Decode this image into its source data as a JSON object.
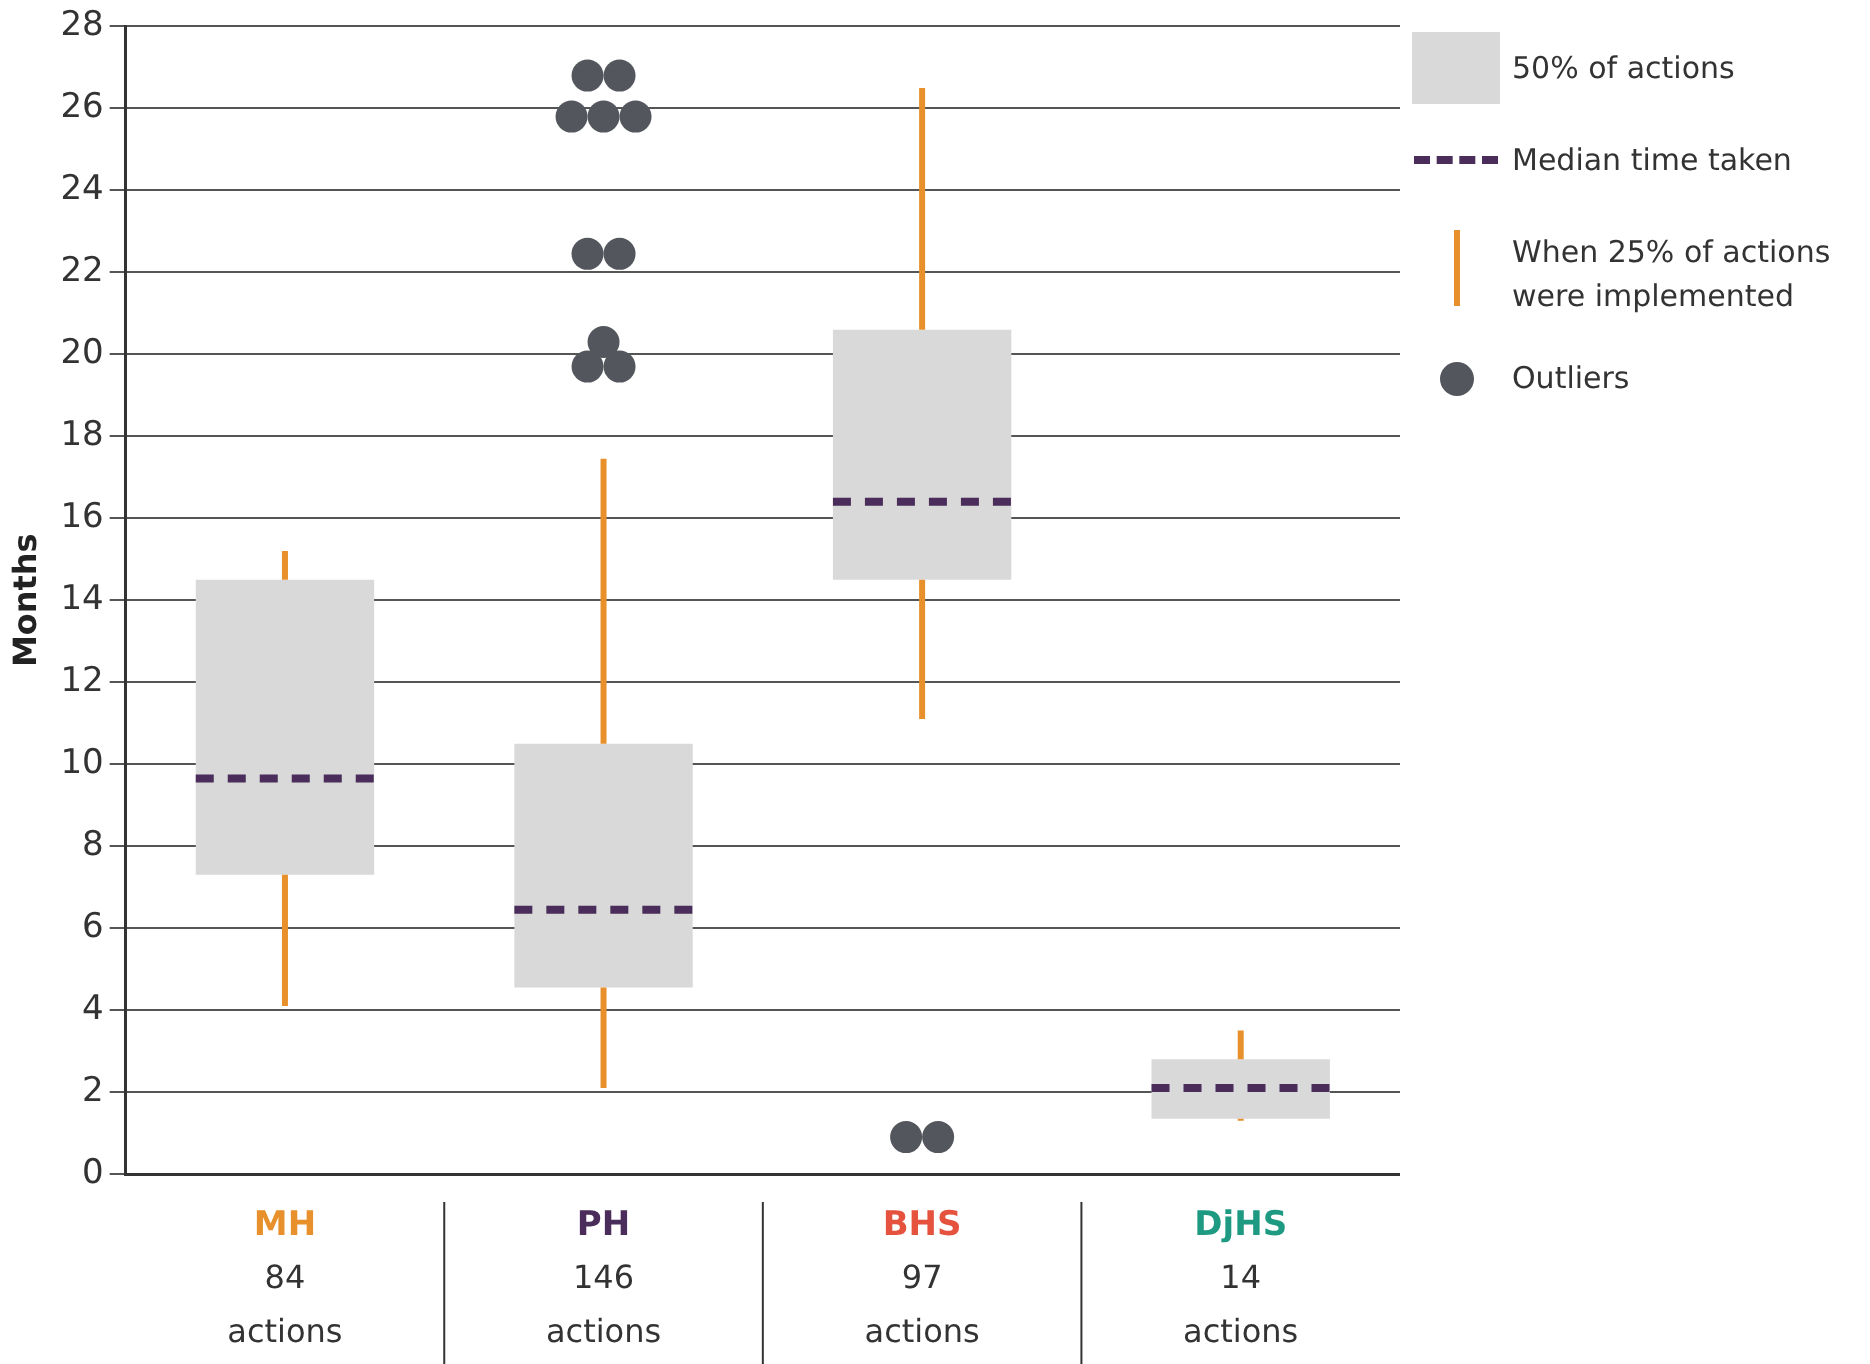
{
  "chart_data": {
    "type": "box",
    "ylabel": "Months",
    "categories": [
      "MH\n84\nactions",
      "PH\n146\nactions",
      "BHS\n97\nactions",
      "DjHS\n14\nactions"
    ],
    "series": [
      {
        "name": "50% of actions",
        "color": "#d9d9d9",
        "boxes": [
          {
            "low": 4.1,
            "q1": 7.3,
            "median": 9.65,
            "q3": 14.5,
            "high": 15.2
          },
          {
            "low": 2.1,
            "q1": 4.55,
            "median": 6.45,
            "q3": 10.5,
            "high": 17.45,
            "outliers": [
              26.8,
              26.8,
              25.8,
              25.8,
              25.8,
              22.45,
              22.45,
              20.3,
              19.7,
              19.7
            ]
          },
          {
            "low": 11.1,
            "q1": 14.5,
            "median": 16.4,
            "q3": 20.6,
            "high": 26.5,
            "outliers": [
              0.9,
              0.9
            ]
          },
          {
            "low": 1.3,
            "q1": 1.35,
            "median": 2.1,
            "q3": 2.8,
            "high": 3.5
          }
        ]
      }
    ],
    "annotations": [
      "Median time taken",
      "When 25% of actions were implemented",
      "Outliers"
    ],
    "ylim": [
      0,
      28
    ],
    "yticks": [
      0,
      2,
      4,
      6,
      8,
      10,
      12,
      14,
      16,
      18,
      20,
      22,
      24,
      26,
      28
    ],
    "grid": "y",
    "legend": "top right"
  }
}
